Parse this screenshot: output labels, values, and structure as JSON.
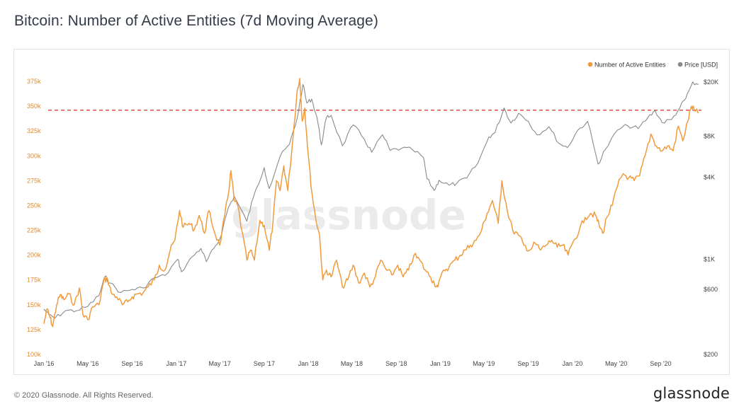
{
  "title": "Bitcoin: Number of Active Entities (7d Moving Average)",
  "footer": {
    "copyright": "© 2020 Glassnode. All Rights Reserved.",
    "brand": "glassnode"
  },
  "watermark": "glassnode",
  "colors": {
    "entities": "#f09b3c",
    "price": "#8a8a8a",
    "reference_line": "#e0302a",
    "left_axis_text": "#e08a2c",
    "right_axis_text": "#444444"
  },
  "chart_data": {
    "type": "line",
    "title": "Bitcoin: Number of Active Entities (7d Moving Average)",
    "legend": {
      "placement": "top-right",
      "entries": [
        "Number of Active Entities",
        "Price [USD]"
      ]
    },
    "x_ticks": [
      "Jan '16",
      "May '16",
      "Sep '16",
      "Jan '17",
      "May '17",
      "Sep '17",
      "Jan '18",
      "May '18",
      "Sep '18",
      "Jan '19",
      "May '19",
      "Sep '19",
      "Jan '20",
      "May '20",
      "Sep '20"
    ],
    "y_left": {
      "ticks": [
        "100k",
        "125k",
        "150k",
        "175k",
        "200k",
        "225k",
        "250k",
        "275k",
        "300k",
        "325k",
        "350k",
        "375k"
      ],
      "range": [
        100000,
        380000
      ]
    },
    "y_right": {
      "scale": "log",
      "ticks": [
        {
          "label": "$200",
          "value": 200
        },
        {
          "label": "$600",
          "value": 600
        },
        {
          "label": "$1K",
          "value": 1000
        },
        {
          "label": "$4K",
          "value": 4000
        },
        {
          "label": "$8K",
          "value": 8000
        },
        {
          "label": "$20K",
          "value": 20000
        }
      ],
      "range": [
        200,
        22000
      ]
    },
    "reference_line": {
      "axis": "left",
      "value": 346000,
      "style": "dashed"
    },
    "x_range": [
      "2016-01-01",
      "2020-12-15"
    ],
    "series": [
      {
        "name": "Number of Active Entities",
        "axis": "left",
        "points": [
          [
            "2016-01-01",
            131000
          ],
          [
            "2016-01-10",
            146000
          ],
          [
            "2016-01-18",
            137000
          ],
          [
            "2016-01-25",
            128000
          ],
          [
            "2016-02-05",
            150000
          ],
          [
            "2016-02-15",
            160000
          ],
          [
            "2016-02-25",
            155000
          ],
          [
            "2016-03-10",
            161000
          ],
          [
            "2016-03-25",
            150000
          ],
          [
            "2016-04-08",
            167000
          ],
          [
            "2016-04-18",
            140000
          ],
          [
            "2016-05-01",
            135000
          ],
          [
            "2016-05-15",
            148000
          ],
          [
            "2016-06-01",
            150000
          ],
          [
            "2016-06-15",
            175000
          ],
          [
            "2016-06-25",
            176000
          ],
          [
            "2016-07-05",
            162000
          ],
          [
            "2016-07-20",
            158000
          ],
          [
            "2016-08-05",
            150000
          ],
          [
            "2016-08-20",
            153000
          ],
          [
            "2016-09-01",
            158000
          ],
          [
            "2016-09-15",
            161000
          ],
          [
            "2016-10-01",
            162000
          ],
          [
            "2016-10-15",
            168000
          ],
          [
            "2016-11-01",
            175000
          ],
          [
            "2016-11-15",
            190000
          ],
          [
            "2016-12-01",
            185000
          ],
          [
            "2016-12-15",
            205000
          ],
          [
            "2016-12-28",
            215000
          ],
          [
            "2017-01-10",
            245000
          ],
          [
            "2017-01-20",
            228000
          ],
          [
            "2017-02-05",
            232000
          ],
          [
            "2017-02-20",
            226000
          ],
          [
            "2017-03-05",
            240000
          ],
          [
            "2017-03-20",
            222000
          ],
          [
            "2017-04-01",
            245000
          ],
          [
            "2017-04-15",
            225000
          ],
          [
            "2017-05-01",
            210000
          ],
          [
            "2017-05-15",
            240000
          ],
          [
            "2017-05-25",
            262000
          ],
          [
            "2017-06-01",
            285000
          ],
          [
            "2017-06-10",
            255000
          ],
          [
            "2017-06-20",
            250000
          ],
          [
            "2017-07-01",
            225000
          ],
          [
            "2017-07-15",
            195000
          ],
          [
            "2017-07-25",
            205000
          ],
          [
            "2017-08-05",
            195000
          ],
          [
            "2017-08-20",
            235000
          ],
          [
            "2017-09-01",
            230000
          ],
          [
            "2017-09-15",
            205000
          ],
          [
            "2017-09-25",
            232000
          ],
          [
            "2017-10-05",
            275000
          ],
          [
            "2017-10-15",
            265000
          ],
          [
            "2017-10-25",
            290000
          ],
          [
            "2017-11-05",
            265000
          ],
          [
            "2017-11-20",
            320000
          ],
          [
            "2017-12-01",
            365000
          ],
          [
            "2017-12-08",
            378000
          ],
          [
            "2017-12-15",
            335000
          ],
          [
            "2017-12-22",
            348000
          ],
          [
            "2018-01-01",
            300000
          ],
          [
            "2018-01-10",
            265000
          ],
          [
            "2018-01-20",
            240000
          ],
          [
            "2018-02-01",
            220000
          ],
          [
            "2018-02-10",
            175000
          ],
          [
            "2018-02-20",
            185000
          ],
          [
            "2018-03-05",
            178000
          ],
          [
            "2018-03-20",
            195000
          ],
          [
            "2018-04-05",
            168000
          ],
          [
            "2018-04-20",
            175000
          ],
          [
            "2018-05-05",
            190000
          ],
          [
            "2018-05-20",
            172000
          ],
          [
            "2018-06-05",
            182000
          ],
          [
            "2018-06-20",
            168000
          ],
          [
            "2018-07-05",
            178000
          ],
          [
            "2018-07-20",
            195000
          ],
          [
            "2018-08-05",
            185000
          ],
          [
            "2018-08-20",
            180000
          ],
          [
            "2018-09-05",
            190000
          ],
          [
            "2018-09-20",
            178000
          ],
          [
            "2018-10-05",
            185000
          ],
          [
            "2018-10-20",
            200000
          ],
          [
            "2018-11-05",
            195000
          ],
          [
            "2018-11-20",
            185000
          ],
          [
            "2018-12-05",
            178000
          ],
          [
            "2018-12-15",
            172000
          ],
          [
            "2018-12-25",
            168000
          ],
          [
            "2019-01-10",
            185000
          ],
          [
            "2019-01-25",
            188000
          ],
          [
            "2019-02-10",
            195000
          ],
          [
            "2019-02-25",
            200000
          ],
          [
            "2019-03-10",
            205000
          ],
          [
            "2019-03-25",
            210000
          ],
          [
            "2019-04-10",
            215000
          ],
          [
            "2019-04-25",
            225000
          ],
          [
            "2019-05-10",
            242000
          ],
          [
            "2019-05-25",
            255000
          ],
          [
            "2019-06-10",
            232000
          ],
          [
            "2019-06-20",
            275000
          ],
          [
            "2019-07-05",
            245000
          ],
          [
            "2019-07-20",
            225000
          ],
          [
            "2019-08-05",
            220000
          ],
          [
            "2019-08-20",
            210000
          ],
          [
            "2019-09-05",
            205000
          ],
          [
            "2019-09-20",
            212000
          ],
          [
            "2019-10-05",
            205000
          ],
          [
            "2019-10-20",
            210000
          ],
          [
            "2019-11-05",
            215000
          ],
          [
            "2019-11-20",
            208000
          ],
          [
            "2019-12-05",
            210000
          ],
          [
            "2019-12-20",
            200000
          ],
          [
            "2020-01-05",
            215000
          ],
          [
            "2020-01-20",
            225000
          ],
          [
            "2020-02-05",
            238000
          ],
          [
            "2020-02-20",
            242000
          ],
          [
            "2020-03-05",
            240000
          ],
          [
            "2020-03-15",
            230000
          ],
          [
            "2020-03-25",
            222000
          ],
          [
            "2020-04-05",
            238000
          ],
          [
            "2020-04-20",
            250000
          ],
          [
            "2020-05-05",
            270000
          ],
          [
            "2020-05-20",
            282000
          ],
          [
            "2020-06-05",
            278000
          ],
          [
            "2020-06-20",
            275000
          ],
          [
            "2020-07-05",
            280000
          ],
          [
            "2020-07-20",
            300000
          ],
          [
            "2020-08-05",
            322000
          ],
          [
            "2020-08-20",
            310000
          ],
          [
            "2020-09-05",
            305000
          ],
          [
            "2020-09-20",
            310000
          ],
          [
            "2020-10-05",
            305000
          ],
          [
            "2020-10-20",
            330000
          ],
          [
            "2020-11-01",
            315000
          ],
          [
            "2020-11-15",
            335000
          ],
          [
            "2020-11-25",
            350000
          ],
          [
            "2020-12-05",
            345000
          ],
          [
            "2020-12-15",
            343000
          ]
        ]
      },
      {
        "name": "Price [USD]",
        "axis": "right",
        "points": [
          [
            "2016-01-01",
            430
          ],
          [
            "2016-01-15",
            390
          ],
          [
            "2016-02-01",
            370
          ],
          [
            "2016-03-01",
            420
          ],
          [
            "2016-04-01",
            420
          ],
          [
            "2016-05-01",
            450
          ],
          [
            "2016-06-01",
            540
          ],
          [
            "2016-06-18",
            750
          ],
          [
            "2016-07-01",
            670
          ],
          [
            "2016-08-01",
            570
          ],
          [
            "2016-09-01",
            600
          ],
          [
            "2016-10-01",
            615
          ],
          [
            "2016-11-01",
            730
          ],
          [
            "2016-12-01",
            760
          ],
          [
            "2017-01-05",
            1000
          ],
          [
            "2017-01-15",
            810
          ],
          [
            "2017-02-15",
            1050
          ],
          [
            "2017-03-10",
            1200
          ],
          [
            "2017-03-25",
            960
          ],
          [
            "2017-04-15",
            1200
          ],
          [
            "2017-05-01",
            1400
          ],
          [
            "2017-05-25",
            2400
          ],
          [
            "2017-06-10",
            2900
          ],
          [
            "2017-07-15",
            1900
          ],
          [
            "2017-08-01",
            2800
          ],
          [
            "2017-09-01",
            4700
          ],
          [
            "2017-09-15",
            3300
          ],
          [
            "2017-10-15",
            5700
          ],
          [
            "2017-11-10",
            7000
          ],
          [
            "2017-12-01",
            10800
          ],
          [
            "2017-12-17",
            19200
          ],
          [
            "2017-12-28",
            14000
          ],
          [
            "2018-01-10",
            15000
          ],
          [
            "2018-01-25",
            11000
          ],
          [
            "2018-02-06",
            6900
          ],
          [
            "2018-02-20",
            11000
          ],
          [
            "2018-03-05",
            11400
          ],
          [
            "2018-04-05",
            6800
          ],
          [
            "2018-05-05",
            9700
          ],
          [
            "2018-06-05",
            7600
          ],
          [
            "2018-06-25",
            6100
          ],
          [
            "2018-07-25",
            8200
          ],
          [
            "2018-08-15",
            6300
          ],
          [
            "2018-09-15",
            6500
          ],
          [
            "2018-10-15",
            6400
          ],
          [
            "2018-11-15",
            5600
          ],
          [
            "2018-11-25",
            3900
          ],
          [
            "2018-12-15",
            3200
          ],
          [
            "2018-12-28",
            3800
          ],
          [
            "2019-01-25",
            3500
          ],
          [
            "2019-02-15",
            3600
          ],
          [
            "2019-03-15",
            3950
          ],
          [
            "2019-04-15",
            5100
          ],
          [
            "2019-05-15",
            7900
          ],
          [
            "2019-06-01",
            8500
          ],
          [
            "2019-06-26",
            12900
          ],
          [
            "2019-07-15",
            10000
          ],
          [
            "2019-08-05",
            11800
          ],
          [
            "2019-09-01",
            10300
          ],
          [
            "2019-09-25",
            8200
          ],
          [
            "2019-10-28",
            9400
          ],
          [
            "2019-11-25",
            7100
          ],
          [
            "2019-12-18",
            6600
          ],
          [
            "2020-01-15",
            8800
          ],
          [
            "2020-02-12",
            10300
          ],
          [
            "2020-03-12",
            5000
          ],
          [
            "2020-04-01",
            6400
          ],
          [
            "2020-05-05",
            8900
          ],
          [
            "2020-06-01",
            9600
          ],
          [
            "2020-07-01",
            9100
          ],
          [
            "2020-07-28",
            11000
          ],
          [
            "2020-08-17",
            12300
          ],
          [
            "2020-09-05",
            10100
          ],
          [
            "2020-10-01",
            10600
          ],
          [
            "2020-10-25",
            13100
          ],
          [
            "2020-11-10",
            15300
          ],
          [
            "2020-11-25",
            19000
          ],
          [
            "2020-12-01",
            19500
          ],
          [
            "2020-12-15",
            19300
          ]
        ]
      }
    ]
  }
}
